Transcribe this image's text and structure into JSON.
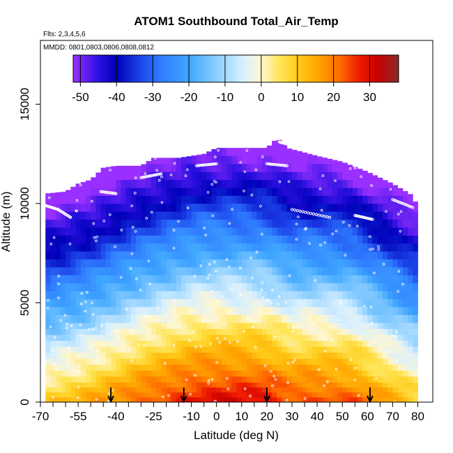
{
  "chart_data": {
    "type": "heatmap",
    "title": "ATOM1 Southbound Total_Air_Temp",
    "subtitle": "Flts: 2,3,4,5,6",
    "date_label": "MMDD: 0801,0803,0806,0808,0812",
    "xlabel": "Latitude (deg N)",
    "ylabel": "Altitude (m)",
    "xlim": [
      -70,
      85
    ],
    "ylim": [
      0,
      17500
    ],
    "x_ticks": [
      -70,
      -55,
      -40,
      -25,
      -10,
      0,
      10,
      20,
      30,
      40,
      50,
      60,
      70,
      80
    ],
    "x_tick_labels": [
      "-70",
      "-55",
      "-40",
      "-25",
      "-10",
      "0",
      "10",
      "20",
      "30",
      "40",
      "50",
      "60",
      "70",
      "80"
    ],
    "x_minor_ticks": [
      -65,
      -60,
      -50,
      -45,
      -35,
      -30,
      -20,
      -15,
      -5,
      5,
      15,
      25,
      35,
      45,
      55,
      65,
      75
    ],
    "y_ticks": [
      0,
      5000,
      10000,
      15000
    ],
    "y_tick_labels": [
      "0",
      "5000",
      "10000",
      "15000"
    ],
    "colorbar": {
      "range": [
        -52,
        38
      ],
      "ticks": [
        -50,
        -40,
        -30,
        -20,
        -10,
        0,
        10,
        20,
        30
      ],
      "tick_labels": [
        "-50",
        "-40",
        "-30",
        "-20",
        "-10",
        "0",
        "10",
        "20",
        "30"
      ],
      "colors": [
        {
          "v": -52,
          "c": "#9a30ff"
        },
        {
          "v": -45,
          "c": "#2a10e0"
        },
        {
          "v": -40,
          "c": "#0000b8"
        },
        {
          "v": -34,
          "c": "#1a3ee6"
        },
        {
          "v": -28,
          "c": "#2f7cff"
        },
        {
          "v": -20,
          "c": "#3fa6ff"
        },
        {
          "v": -12,
          "c": "#8fd0ff"
        },
        {
          "v": -5,
          "c": "#d8f0ff"
        },
        {
          "v": 0,
          "c": "#fff6cf"
        },
        {
          "v": 5,
          "c": "#ffe55a"
        },
        {
          "v": 10,
          "c": "#ffcc1a"
        },
        {
          "v": 16,
          "c": "#ffa200"
        },
        {
          "v": 22,
          "c": "#ff6a00"
        },
        {
          "v": 27,
          "c": "#ee1c00"
        },
        {
          "v": 32,
          "c": "#cc0000"
        },
        {
          "v": 38,
          "c": "#8a2a2a"
        }
      ]
    },
    "field_model": {
      "alt_edges": [
        0,
        250,
        500,
        750,
        1000,
        1300,
        1600,
        1900,
        2200,
        2500,
        2800,
        3100,
        3400,
        3700,
        4000,
        4400,
        4800,
        5200,
        5600,
        6000,
        6400,
        6800,
        7200,
        7600,
        8000,
        8400,
        8800,
        9200,
        9600,
        10000,
        10400,
        10800,
        11200,
        11600,
        12000,
        12400,
        12800,
        13200
      ],
      "lat_start": -68,
      "lat_end": 80,
      "lat_step": 2,
      "top_profile": [
        [
          -68,
          10500
        ],
        [
          -60,
          10600
        ],
        [
          -55,
          11000
        ],
        [
          -50,
          11200
        ],
        [
          -45,
          11800
        ],
        [
          -40,
          11900
        ],
        [
          -30,
          11900
        ],
        [
          -25,
          12300
        ],
        [
          -15,
          12300
        ],
        [
          -5,
          12500
        ],
        [
          0,
          12800
        ],
        [
          20,
          12800
        ],
        [
          25,
          13400
        ],
        [
          28,
          12800
        ],
        [
          40,
          12400
        ],
        [
          50,
          12100
        ],
        [
          60,
          11600
        ],
        [
          70,
          11000
        ],
        [
          78,
          10400
        ],
        [
          80,
          9800
        ]
      ],
      "lapse_rate_per_km": 6.5,
      "surface_temp": [
        [
          -68,
          10
        ],
        [
          -60,
          12
        ],
        [
          -50,
          15
        ],
        [
          -45,
          17
        ],
        [
          -40,
          19
        ],
        [
          -30,
          23
        ],
        [
          -20,
          26
        ],
        [
          -10,
          29
        ],
        [
          0,
          30
        ],
        [
          10,
          30
        ],
        [
          20,
          29
        ],
        [
          25,
          27
        ],
        [
          30,
          25
        ],
        [
          40,
          25
        ],
        [
          50,
          24
        ],
        [
          55,
          23
        ],
        [
          60,
          20
        ],
        [
          70,
          15
        ],
        [
          80,
          10
        ]
      ],
      "arrows_latitude": [
        -42,
        -13,
        20,
        61
      ]
    },
    "flight_tracks": {
      "marker": "open-circle",
      "color": "#ffffff",
      "segments": [
        [
          [
            -68,
            9900
          ],
          [
            -63,
            9700
          ],
          [
            -58,
            9300
          ]
        ],
        [
          [
            -46,
            10600
          ],
          [
            -40,
            10500
          ]
        ],
        [
          [
            -30,
            11300
          ],
          [
            -22,
            11500
          ]
        ],
        [
          [
            -8,
            11900
          ],
          [
            0,
            12000
          ]
        ],
        [
          [
            20,
            12000
          ],
          [
            28,
            11900
          ]
        ],
        [
          [
            25,
            13100
          ],
          [
            28,
            13000
          ]
        ],
        [
          [
            30,
            9700
          ],
          [
            45,
            9300
          ]
        ],
        [
          [
            55,
            9400
          ],
          [
            62,
            9200
          ]
        ],
        [
          [
            70,
            10200
          ],
          [
            78,
            9800
          ]
        ]
      ]
    },
    "grid": false,
    "legend": "colorbar-top"
  }
}
